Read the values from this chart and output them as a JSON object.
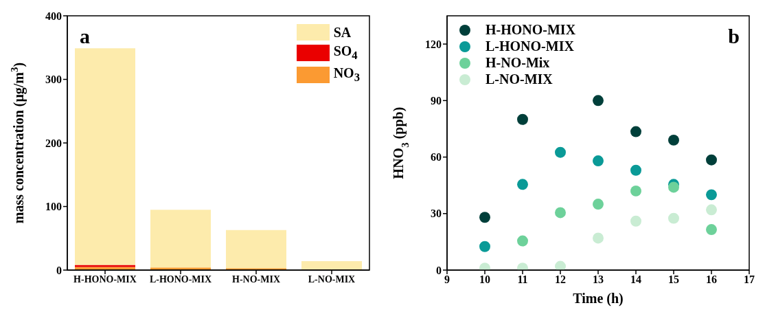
{
  "chart_data": [
    {
      "type": "bar",
      "stacked": true,
      "annotations": [
        "a"
      ],
      "ylabel": "mass concentration (μg/m$^{3}$)",
      "categories": [
        "H-HONO-MIX",
        "L-HONO-MIX",
        "H-NO-MIX",
        "L-NO-MIX"
      ],
      "series": [
        {
          "name": "NO$_{3}$",
          "color": "#fb9a32",
          "values": [
            5,
            4,
            3,
            0
          ]
        },
        {
          "name": "SO$_{4}$",
          "color": "#ea0000",
          "values": [
            3,
            0,
            0,
            0
          ]
        },
        {
          "name": "SA",
          "color": "#fdebac",
          "values": [
            341,
            91,
            60,
            14
          ]
        }
      ],
      "ylim": [
        0,
        400
      ],
      "yticks": [
        0,
        100,
        200,
        300,
        400
      ],
      "grid": false,
      "legend": "top right"
    },
    {
      "type": "scatter",
      "annotations": [
        "b"
      ],
      "xlabel": "Time (h)",
      "ylabel": "HNO$_{3}$ (ppb)",
      "x": [
        10,
        11,
        12,
        13,
        14,
        15,
        16
      ],
      "series": [
        {
          "name": "H-HONO-MIX",
          "color": "#003f3a",
          "values": [
            28,
            80,
            null,
            90,
            73.5,
            69,
            58.5
          ]
        },
        {
          "name": "L-HONO-MIX",
          "color": "#0a9a97",
          "values": [
            12.5,
            45.5,
            62.5,
            58,
            53,
            45.5,
            40
          ]
        },
        {
          "name": "H-NO-Mix",
          "color": "#6dd19a",
          "values": [
            null,
            15.5,
            30.5,
            35,
            42,
            44,
            21.5
          ]
        },
        {
          "name": "L-NO-MIX",
          "color": "#c9ecd3",
          "values": [
            1,
            1,
            2,
            17,
            26,
            27.5,
            32
          ]
        }
      ],
      "xlim": [
        9,
        17
      ],
      "xticks": [
        9,
        10,
        11,
        12,
        13,
        14,
        15,
        16,
        17
      ],
      "ylim": [
        0,
        135
      ],
      "yticks": [
        0,
        30,
        60,
        90,
        120
      ],
      "grid": false,
      "legend": "top left",
      "marker": "circle"
    }
  ]
}
